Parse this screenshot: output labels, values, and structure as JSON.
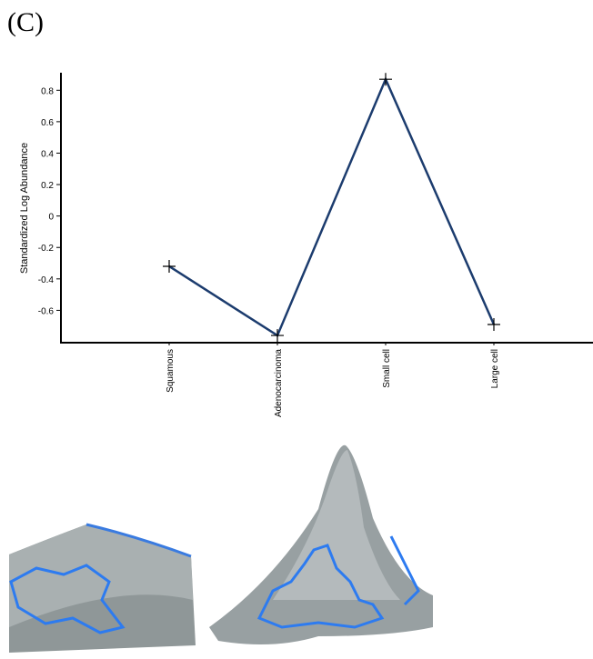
{
  "chart_data": {
    "type": "line",
    "title": "(C)",
    "y_label": "Standardized Log Abundance",
    "categories": [
      "Squamous",
      "Adenocarcinoma",
      "Small cell",
      "Large cell"
    ],
    "values": [
      -0.32,
      -0.76,
      0.87,
      -0.69
    ],
    "color": "#1c3c6e",
    "ylim": [
      -0.8,
      0.9
    ],
    "yticks": [
      -0.6,
      -0.4,
      -0.2,
      0,
      0.2,
      0.4,
      0.6,
      0.8
    ]
  }
}
